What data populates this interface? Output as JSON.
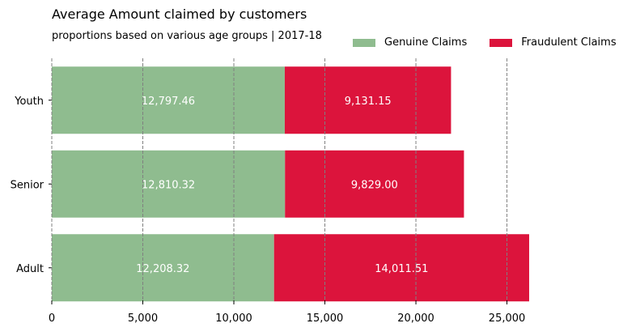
{
  "chart_data": {
    "type": "bar",
    "orientation": "horizontal",
    "stacked": true,
    "title": "Average Amount claimed by customers",
    "subtitle": "proportions based on various age groups | 2017-18",
    "xlabel": "",
    "ylabel": "",
    "categories": [
      "Youth",
      "Senior",
      "Adult"
    ],
    "series": [
      {
        "name": "Genuine Claims",
        "color": "#8fbc8f",
        "values": [
          12797.46,
          12810.32,
          12208.32
        ],
        "labels": [
          "12,797.46",
          "12,810.32",
          "12,208.32"
        ]
      },
      {
        "name": "Fraudulent Claims",
        "color": "#dc143c",
        "values": [
          9131.15,
          9829.0,
          14011.51
        ],
        "labels": [
          "9,131.15",
          "9,829.00",
          "14,011.51"
        ]
      }
    ],
    "xlim": [
      0,
      26220
    ],
    "xticks": [
      0,
      5000,
      10000,
      15000,
      20000,
      25000
    ],
    "xtick_labels": [
      "0",
      "5,000",
      "10,000",
      "15,000",
      "20,000",
      "25,000"
    ],
    "grid": "vertical dashed",
    "legend_position": "top-right"
  }
}
